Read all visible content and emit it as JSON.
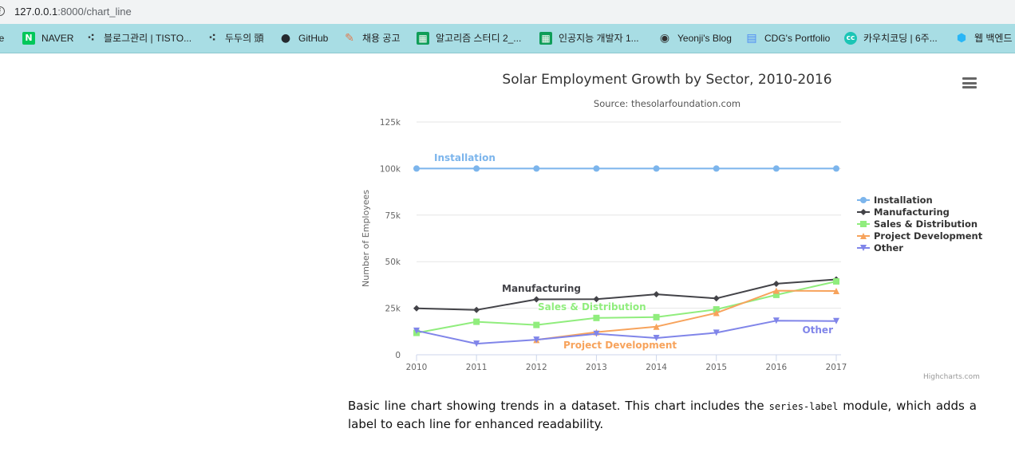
{
  "browser": {
    "url_host": "127.0.0.1",
    "url_rest": ":8000/chart_line"
  },
  "bookmarks": [
    {
      "label": "be",
      "icon": "",
      "icon_color": ""
    },
    {
      "label": "NAVER",
      "icon": "N",
      "icon_color": "#03c75a"
    },
    {
      "label": "블로그관리 | TISTO...",
      "icon": "tistory-icon",
      "icon_color": "#333333"
    },
    {
      "label": "두두의 頭",
      "icon": "tistory-icon",
      "icon_color": "#333333"
    },
    {
      "label": "GitHub",
      "icon": "github-icon",
      "icon_color": "#24292e"
    },
    {
      "label": "채용 공고",
      "icon": "pencil-icon",
      "icon_color": "#e07a4f"
    },
    {
      "label": "알고리즘 스터디 2_...",
      "icon": "sheets-icon",
      "icon_color": "#0f9d58"
    },
    {
      "label": "인공지능 개발자 1...",
      "icon": "sheets-icon",
      "icon_color": "#0f9d58"
    },
    {
      "label": "Yeonji's Blog",
      "icon": "globe-icon",
      "icon_color": "#333333"
    },
    {
      "label": "CDG's Portfolio",
      "icon": "docs-icon",
      "icon_color": "#4c8bf5"
    },
    {
      "label": "카우치코딩 | 6주...",
      "icon": "cc-icon",
      "icon_color": "#1bc5b5"
    },
    {
      "label": "웹 백엔드",
      "icon": "hex-icon",
      "icon_color": "#29b6f6"
    }
  ],
  "chart_data": {
    "type": "line",
    "title": "Solar Employment Growth by Sector, 2010-2016",
    "subtitle": "Source: thesolarfoundation.com",
    "xlabel": "",
    "ylabel": "Number of Employees",
    "x": [
      2010,
      2011,
      2012,
      2013,
      2014,
      2015,
      2016,
      2017
    ],
    "ylim": [
      0,
      125000
    ],
    "yticks": [
      0,
      25000,
      50000,
      75000,
      100000,
      125000
    ],
    "ytick_labels": [
      "0",
      "25k",
      "50k",
      "75k",
      "100k",
      "125k"
    ],
    "grid": true,
    "legend_position": "right",
    "credits": "Highcharts.com",
    "series": [
      {
        "name": "Installation",
        "color": "#7cb5ec",
        "marker": "circle",
        "values": [
          100000,
          100000,
          100000,
          100000,
          100000,
          100000,
          100000,
          100000
        ]
      },
      {
        "name": "Manufacturing",
        "color": "#434348",
        "marker": "diamond",
        "values": [
          24916,
          24064,
          29742,
          29851,
          32490,
          30282,
          38121,
          40434
        ]
      },
      {
        "name": "Sales & Distribution",
        "color": "#90ed7d",
        "marker": "square",
        "values": [
          11744,
          17722,
          16005,
          19771,
          20185,
          24377,
          32147,
          39387
        ]
      },
      {
        "name": "Project Development",
        "color": "#f7a35c",
        "marker": "triangle",
        "values": [
          null,
          null,
          7988,
          12169,
          15112,
          22452,
          34400,
          34227
        ]
      },
      {
        "name": "Other",
        "color": "#8085e9",
        "marker": "triangle-down",
        "values": [
          12908,
          5948,
          8105,
          11248,
          8989,
          11816,
          18274,
          18111
        ]
      }
    ]
  },
  "description": {
    "before": "Basic line chart showing trends in a dataset. This chart includes the ",
    "code": "series-label",
    "after": " module, which adds a label to each line for enhanced readability."
  }
}
